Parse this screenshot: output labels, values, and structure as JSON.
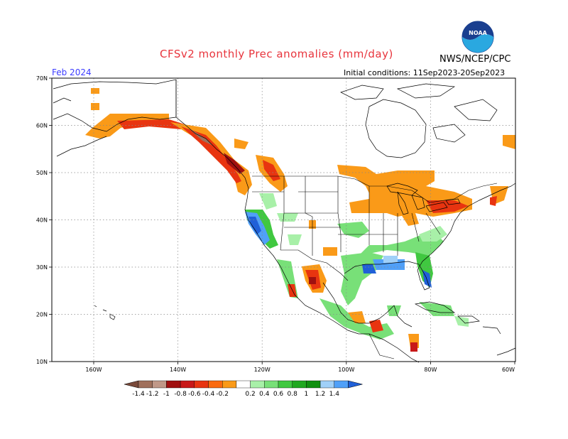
{
  "header": {
    "title": "CFSv2 monthly Prec anomalies (mm/day)",
    "agency": "NWS/NCEP/CPC",
    "month": "Feb 2024",
    "initial_conditions": "Initial conditions: 11Sep2023-20Sep2023"
  },
  "logo": {
    "text": "NOAA",
    "color": "#1f5fbf"
  },
  "axes": {
    "lat_labels": [
      "70N",
      "60N",
      "50N",
      "40N",
      "30N",
      "20N",
      "10N"
    ],
    "lon_labels": [
      "160W",
      "140W",
      "120W",
      "100W",
      "80W",
      "60W"
    ]
  },
  "colorbar": {
    "colors": [
      "#7a4a3a",
      "#a0705c",
      "#c09888",
      "#a01010",
      "#c81818",
      "#e83410",
      "#fa6a10",
      "#fa9a18",
      "#ffffff",
      "#a8f0a8",
      "#78e078",
      "#40c840",
      "#20a820",
      "#109010",
      "#a0d0f8",
      "#50a0f8",
      "#2060d8"
    ],
    "labels": [
      "-1.4",
      "-1.2",
      "-1",
      "-0.8",
      "-0.6",
      "-0.4",
      "-0.2",
      "0.2",
      "0.4",
      "0.6",
      "0.8",
      "1",
      "1.2",
      "1.4"
    ]
  }
}
